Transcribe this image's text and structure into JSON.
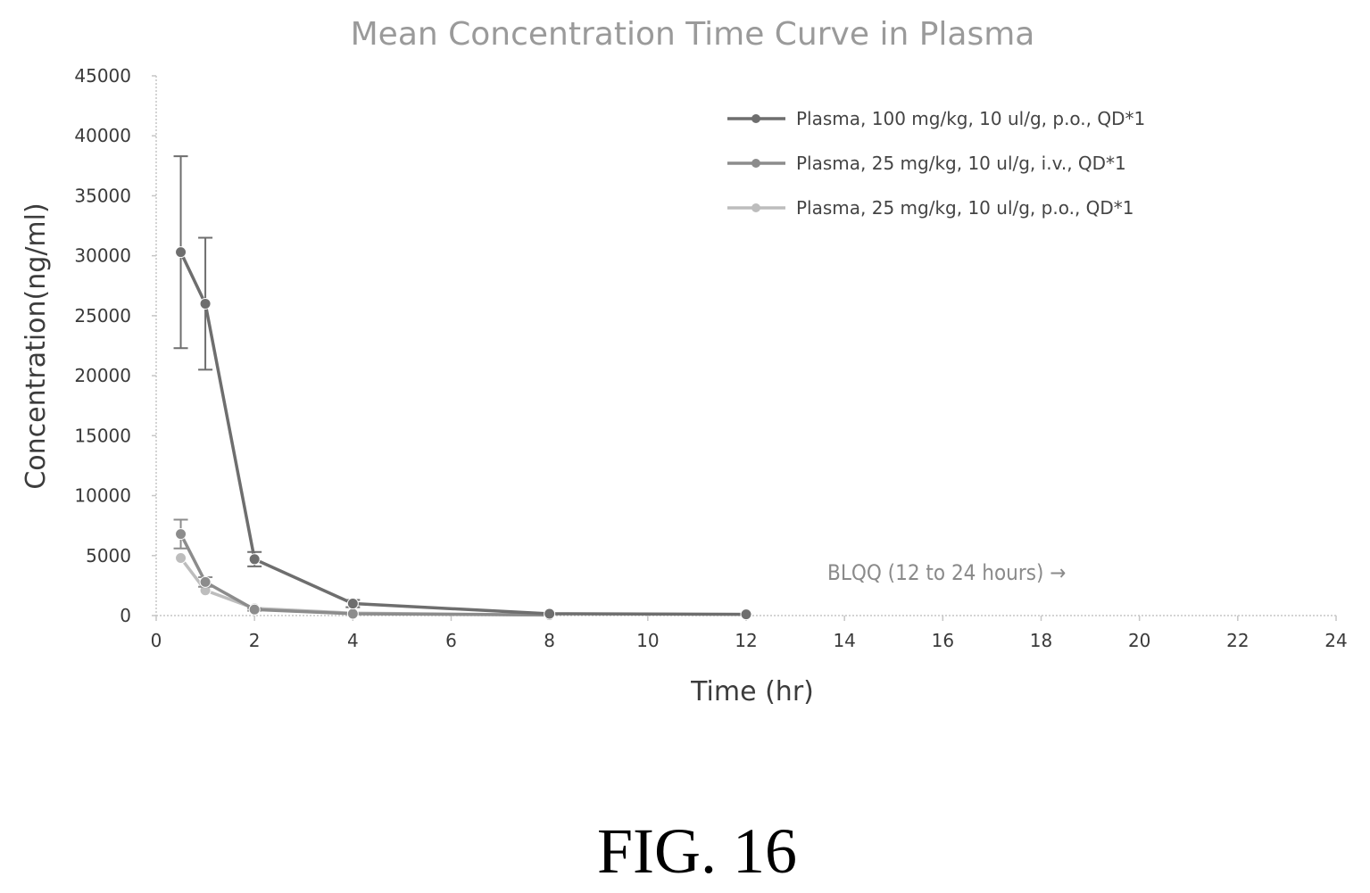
{
  "chart_data": {
    "type": "line",
    "title": "Mean Concentration Time Curve in Plasma",
    "xlabel": "Time (hr)",
    "ylabel": "Concentration(ng/ml)",
    "xlim": [
      0,
      24
    ],
    "ylim": [
      0,
      45000
    ],
    "xticks": [
      0,
      2,
      4,
      6,
      8,
      10,
      12,
      14,
      16,
      18,
      20,
      22,
      24
    ],
    "yticks": [
      0,
      5000,
      10000,
      15000,
      20000,
      25000,
      30000,
      35000,
      40000,
      45000
    ],
    "grid": false,
    "legend_position": "top-right",
    "series": [
      {
        "name": "Plasma, 100 mg/kg, 10 ul/g, p.o., QD*1",
        "color": "#6e6e6e",
        "x": [
          0.5,
          1,
          2,
          4,
          8,
          12
        ],
        "y": [
          30300,
          26000,
          4700,
          1000,
          150,
          100
        ],
        "err": [
          8000,
          5500,
          600,
          300,
          0,
          0
        ]
      },
      {
        "name": "Plasma, 25 mg/kg, 10 ul/g, i.v., QD*1",
        "color": "#8c8c8c",
        "x": [
          0.5,
          1,
          2,
          4,
          8
        ],
        "y": [
          6800,
          2800,
          500,
          150,
          50
        ],
        "err": [
          1200,
          400,
          100,
          0,
          0
        ]
      },
      {
        "name": "Plasma, 25 mg/kg, 10 ul/g, p.o., QD*1",
        "color": "#bdbdbd",
        "x": [
          0.5,
          1,
          2,
          4,
          8
        ],
        "y": [
          4800,
          2100,
          600,
          200,
          50
        ],
        "err": [
          0,
          0,
          0,
          0,
          0
        ]
      }
    ],
    "annotation": "BLQQ (12 to 24 hours) →"
  },
  "figure_label": "FIG. 16"
}
